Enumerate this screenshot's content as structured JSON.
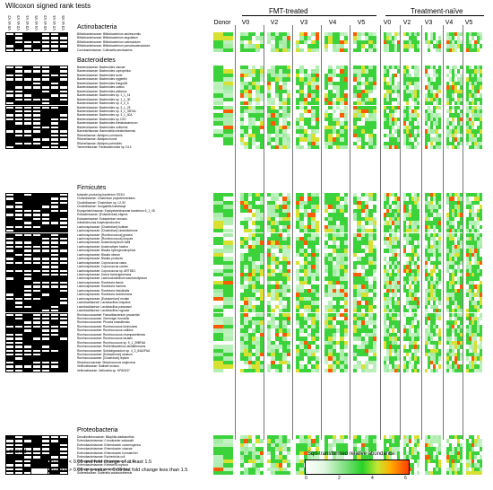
{
  "wilcoxon": {
    "title": "Wilcoxon signed rank tests",
    "columns": [
      "V0 vs V2",
      "V2 vs V3",
      "V3 vs V4",
      "V4 vs V5",
      "V0 vs V3",
      "V2 vs V4",
      "V3 vs V5"
    ]
  },
  "phyla": [
    {
      "name": "Actinobacteria",
      "taxa": [
        "Bifidobacteriaceae: Bifidobacterium adolescentis",
        "Bifidobacteriaceae: Bifidobacterium angulatum",
        "Bifidobacteriaceae: Bifidobacterium catenulatum",
        "Bifidobacteriaceae: Bifidobacterium pseudocatenulatum",
        "Coriobacteriaceae: Collinsella aerofaciens"
      ]
    },
    {
      "name": "Bacteroidetes",
      "taxa": [
        "Bacteroidaceae: Bacteroides caccae",
        "Bacteroidaceae: Bacteroides coprophilus",
        "Bacteroidaceae: Bacteroides dorei",
        "Bacteroidaceae: Bacteroides eggerthii",
        "Bacteroidaceae: Bacteroides finegoldii",
        "Bacteroidaceae: Bacteroides ovatus",
        "Bacteroidaceae: Bacteroides plebeius",
        "Bacteroidaceae: Bacteroides sp. 1_1_14",
        "Bacteroidaceae: Bacteroides sp. 1_1_30",
        "Bacteroidaceae: Bacteroides sp. 2_2_4",
        "Bacteroidaceae: Bacteroides sp. 3_1_23",
        "Bacteroidaceae: Bacteroides sp. 3_1_33FAA",
        "Bacteroidaceae: Bacteroides sp. 3_1_40A",
        "Bacteroidaceae: Bacteroides sp. D20",
        "Bacteroidaceae: Bacteroides thetaiotaomicron",
        "Bacteroidaceae: Bacteroides uniformis",
        "Barnesiellaceae: Barnesiella intestinihominis",
        "Rikenellaceae: Alistipes communis",
        "Rikenellaceae: Alistipes ihumii",
        "Rikenellaceae: Alistipes putredinis",
        "Tannerellaceae: Parabacteroides sp. D13"
      ]
    },
    {
      "name": "Firmicutes",
      "taxa": [
        "butyrate-producing bacterium SS3/4",
        "Clostridiaceae: Clostridium phytofermentans",
        "Clostridiaceae: Clostridium sp. L2-50",
        "Clostridiaceae: Hungatella hathewayi",
        "Erysipelotrichaceae: Erysipelotrichaceae bacterium 6_1_45",
        "Eubacteriaceae: [Eubacterium] eligens",
        "Eubacteriaceae: Eubacterium ramulus",
        "Intestinimonas butyriciproducens",
        "Lachnospiraceae: [Clostridium] bolteae",
        "Lachnospiraceae: [Clostridium] clostridioforme",
        "Lachnospiraceae: [Ruminococcus] gnavus",
        "Lachnospiraceae: [Ruminococcus] torques",
        "Lachnospiraceae: Anaerobutyricum hallii",
        "Lachnospiraceae: Anaerostipes hadrus",
        "Lachnospiraceae: Blautia hydrogenotrophica",
        "Lachnospiraceae: Blautia obeum",
        "Lachnospiraceae: Blautia producta",
        "Lachnospiraceae: Coprococcus catus",
        "Lachnospiraceae: Coprococcus comes",
        "Lachnospiraceae: Coprococcus sp. ART55/1",
        "Lachnospiraceae: Dorea formicigenerans",
        "Lachnospiraceae: Lachnoclostridium saccharolyticum",
        "Lachnospiraceae: Roseburia faecis",
        "Lachnospiraceae: Roseburia hominis",
        "Lachnospiraceae: Roseburia intestinalis",
        "Lachnospiraceae: Roseburia inulinivorans",
        "Lachnospiraceae: [Eubacterium] rectale",
        "Lactobacillaceae: Lactobacillus crispatus",
        "Lactobacillaceae: Lactobacillus paracasei",
        "Lactobacillaceae: Lactobacillus rogosae",
        "Ruminococcaceae: Faecalibacterium prausnitzii",
        "Ruminococcaceae: Gemmiger formicilis",
        "Ruminococcaceae: Phocea massiliensis",
        "Ruminococcaceae: Ruminococcus bicirculans",
        "Ruminococcaceae: Ruminococcus callidus",
        "Ruminococcaceae: Ruminococcus champanellensis",
        "Ruminococcaceae: Ruminococcus lactaris",
        "Ruminococcaceae: Ruminococcus sp. 5_1_39BFAA",
        "Ruminococcaceae: Ruthenibacterium lactatiformans",
        "Ruminococcaceae: Subdoligranulum sp. 4_3_54A2FAA",
        "Ruminococcaceae: [Eubacterium] siraeum",
        "Ruminococcaceae: [Clostridium] leptum",
        "Streptococcaceae: Streptococcus anginosus",
        "Veillonellaceae: Dialister invisus",
        "Veillonellaceae: Veillonella sp. HPA0037"
      ]
    },
    {
      "name": "Proteobacteria",
      "taxa": [
        "Desulfovibrionaceae: Bilophila wadsworthia",
        "Enterobacteriaceae: Cronobacter sakazakii",
        "Enterobacteriaceae: Enterobacter cancerogenus",
        "Enterobacteriaceae: Enterobacter cloacae",
        "Enterobacteriaceae: Enterobacter hormaechei",
        "Enterobacteriaceae: Escherichia coli",
        "Enterobacteriaceae: Escherichia sp. 1_1_43",
        "Enterobacteriaceae: Klebsiella oxytoca",
        "Enterobacteriaceae: Klebsiella variicola",
        "Sutterellaceae: Sutterella wadsworthensis"
      ]
    }
  ],
  "heatmap": {
    "donor_label": "Donor",
    "groups": [
      {
        "label": "FMT-treated",
        "visits": [
          "V0",
          "V2",
          "V3",
          "V4",
          "V5"
        ]
      },
      {
        "label": "Treatment-naïve",
        "visits": [
          "V0",
          "V2",
          "V3",
          "V4",
          "V5"
        ]
      }
    ]
  },
  "legend": {
    "title": "Legend",
    "filled_label": "p-value < 0.05 and fold change of at least 1.5",
    "empty_label": "p-value > 0.05 or p-value < 0.05 but fold change less than 1.5"
  },
  "colorbar": {
    "title": "Sqrt-transformed relative abundance",
    "ticks": [
      "0",
      "2",
      "4",
      "6"
    ]
  },
  "colors": {
    "low": "#ffffff",
    "mid": "#28d228",
    "high": "#ff3c00",
    "sig": "#000000"
  }
}
